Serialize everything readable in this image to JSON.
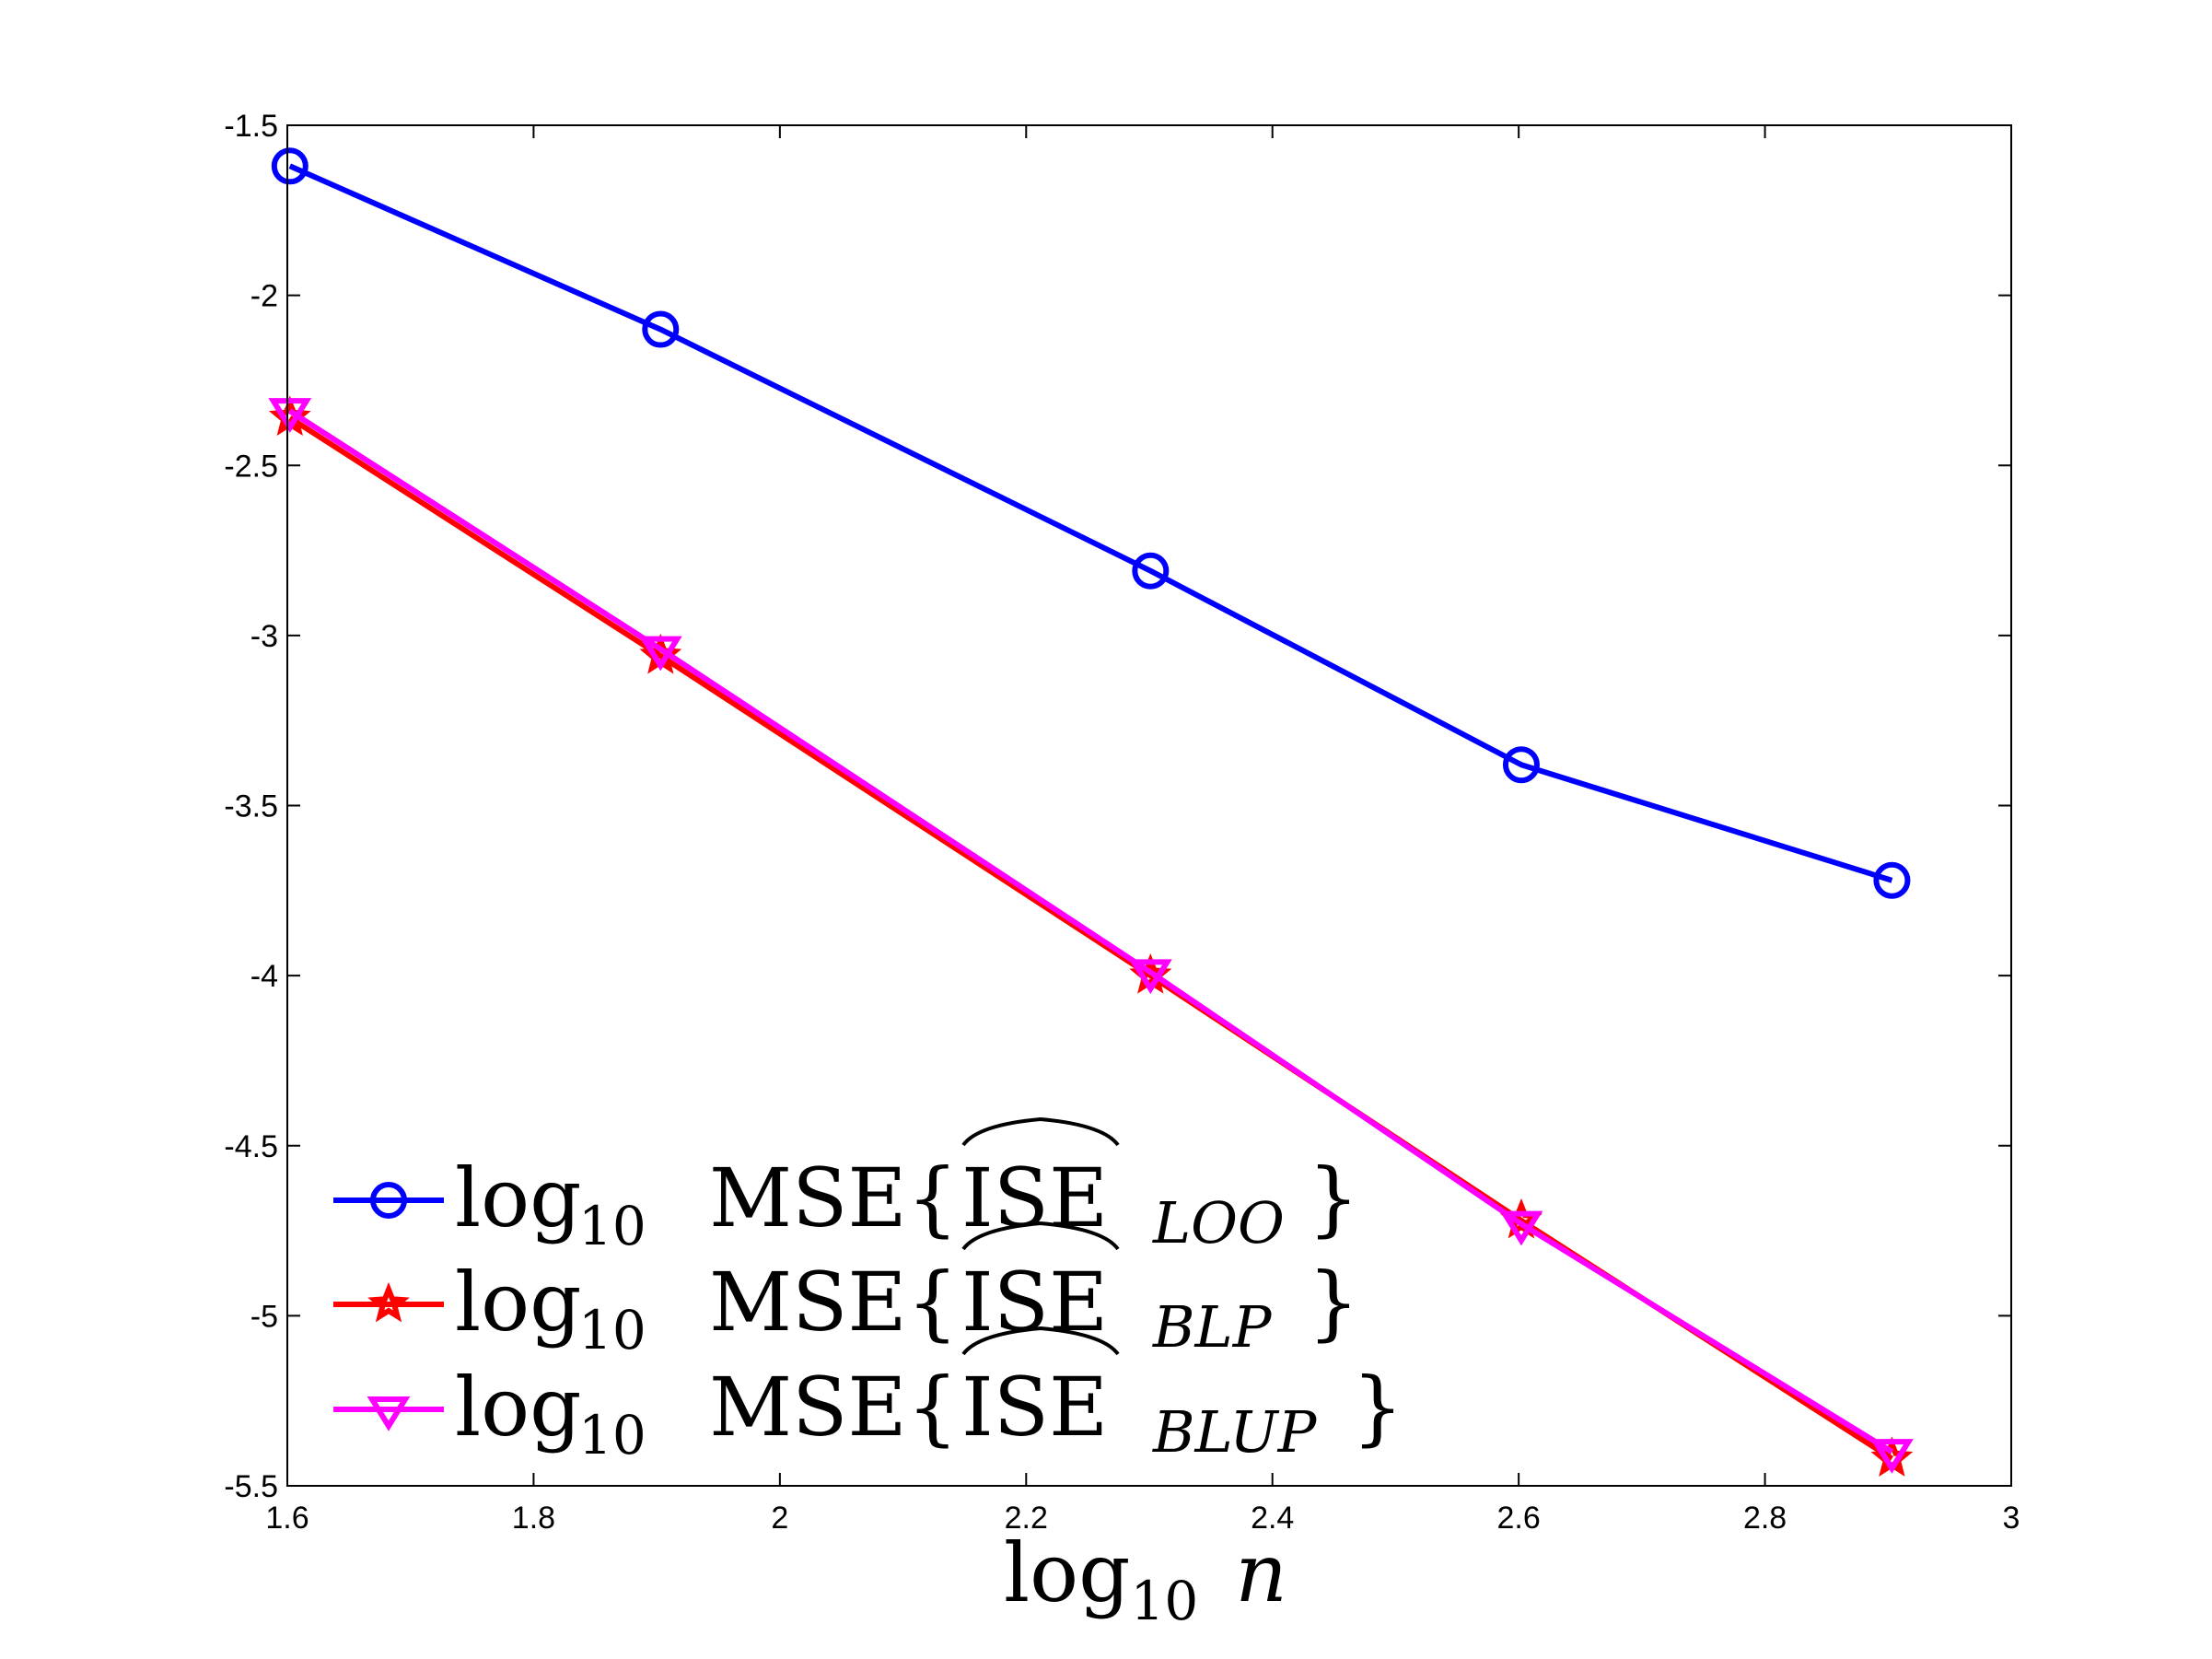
{
  "chart_data": {
    "type": "line",
    "title": "",
    "xlabel": {
      "main": "log",
      "sub": "10",
      "var": "n"
    },
    "ylabel": "",
    "xlim": [
      1.6,
      3.0
    ],
    "ylim": [
      -5.5,
      -1.5
    ],
    "x_ticks": [
      1.6,
      1.8,
      2.0,
      2.2,
      2.4,
      2.6,
      2.8,
      3.0
    ],
    "x_tick_labels": [
      "1.6",
      "1.8",
      "2",
      "2.2",
      "2.4",
      "2.6",
      "2.8",
      "3"
    ],
    "y_ticks": [
      -1.5,
      -2,
      -2.5,
      -3,
      -3.5,
      -4,
      -4.5,
      -5,
      -5.5
    ],
    "y_tick_labels": [
      "-1.5",
      "-2",
      "-2.5",
      "-3",
      "-3.5",
      "-4",
      "-4.5",
      "-5",
      "-5.5"
    ],
    "grid": false,
    "legend_position": "bottom-left",
    "series": [
      {
        "name": "LOO",
        "legend": {
          "log": "log",
          "sub": "10",
          "mse": "MSE{",
          "ise": "ISE",
          "estsub": "LOO",
          "close": "}"
        },
        "color": "#0000ff",
        "marker": "circle",
        "x": [
          1.6021,
          1.9031,
          2.301,
          2.6021,
          2.9031
        ],
        "values": [
          -1.62,
          -2.1,
          -2.81,
          -3.38,
          -3.72
        ]
      },
      {
        "name": "BLP",
        "legend": {
          "log": "log",
          "sub": "10",
          "mse": "MSE{",
          "ise": "ISE",
          "estsub": "BLP",
          "close": "}"
        },
        "color": "#ff0000",
        "marker": "star",
        "x": [
          1.6021,
          1.9031,
          2.301,
          2.6021,
          2.9031
        ],
        "values": [
          -2.36,
          -3.06,
          -4.0,
          -4.72,
          -5.42
        ]
      },
      {
        "name": "BLUP",
        "legend": {
          "log": "log",
          "sub": "10",
          "mse": "MSE{",
          "ise": "ISE",
          "estsub": "BLUP",
          "close": "}"
        },
        "color": "#ff00ff",
        "marker": "triangle-down",
        "x": [
          1.6021,
          1.9031,
          2.301,
          2.6021,
          2.9031
        ],
        "values": [
          -2.34,
          -3.04,
          -3.99,
          -4.73,
          -5.4
        ]
      }
    ]
  }
}
